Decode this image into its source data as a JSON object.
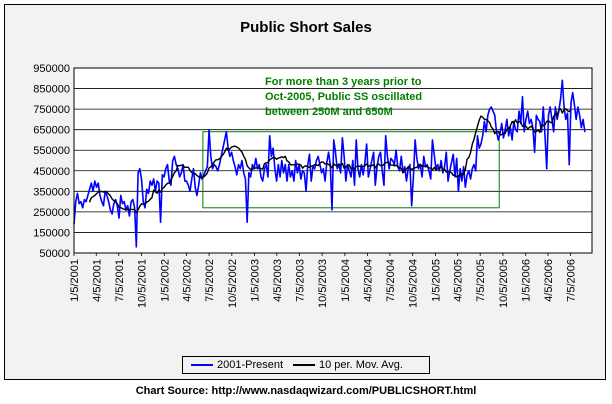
{
  "chart_data": {
    "type": "line",
    "title": "Public Short Sales",
    "xlabel": "",
    "ylabel": "",
    "ylim": [
      50000,
      950000
    ],
    "yticks": [
      950000,
      850000,
      750000,
      650000,
      550000,
      450000,
      350000,
      250000,
      150000,
      50000
    ],
    "ytick_labels": [
      "950000",
      "850000",
      "750000",
      "650000",
      "550000",
      "450000",
      "350000",
      "250000",
      "150000",
      "50000"
    ],
    "xticks": [
      "1/5/2001",
      "4/5/2001",
      "7/5/2001",
      "10/5/2001",
      "1/5/2002",
      "4/5/2002",
      "7/5/2002",
      "10/5/2002",
      "1/5/2003",
      "4/5/2003",
      "7/5/2003",
      "10/5/2003",
      "1/5/2004",
      "4/5/2004",
      "7/5/2004",
      "10/5/2004",
      "1/5/2005",
      "4/5/2005",
      "7/5/2005",
      "10/5/2005",
      "1/5/2006",
      "4/5/2006",
      "7/5/2006"
    ],
    "x_start": "2001-01-05",
    "x_end": "2006-09-30",
    "step_days": 7,
    "grid": true,
    "legend_position": "bottom",
    "annotation": {
      "lines": [
        "For more than 3 years prior to",
        "Oct-2005, Public SS oscillated",
        "between 250M and 650M"
      ],
      "box_from": "2002-06-10",
      "box_to": "2005-09-20",
      "box_ylim": [
        270000,
        640000
      ],
      "color": "#008000"
    },
    "series": [
      {
        "name": "2001-Present",
        "color": "#0000ff",
        "values": [
          190000,
          300000,
          340000,
          290000,
          300000,
          270000,
          310000,
          300000,
          330000,
          360000,
          390000,
          350000,
          400000,
          370000,
          390000,
          330000,
          300000,
          280000,
          350000,
          330000,
          300000,
          260000,
          240000,
          290000,
          310000,
          280000,
          220000,
          330000,
          290000,
          300000,
          260000,
          280000,
          230000,
          300000,
          310000,
          270000,
          80000,
          440000,
          460000,
          410000,
          300000,
          270000,
          360000,
          340000,
          400000,
          380000,
          410000,
          350000,
          400000,
          390000,
          200000,
          430000,
          420000,
          460000,
          480000,
          400000,
          380000,
          500000,
          520000,
          480000,
          460000,
          420000,
          440000,
          480000,
          400000,
          400000,
          380000,
          350000,
          410000,
          460000,
          370000,
          330000,
          380000,
          440000,
          410000,
          430000,
          450000,
          470000,
          650000,
          520000,
          460000,
          480000,
          470000,
          450000,
          480000,
          520000,
          560000,
          600000,
          640000,
          560000,
          520000,
          540000,
          500000,
          470000,
          430000,
          480000,
          460000,
          500000,
          440000,
          410000,
          200000,
          440000,
          420000,
          480000,
          460000,
          510000,
          460000,
          480000,
          420000,
          400000,
          460000,
          480000,
          420000,
          620000,
          520000,
          560000,
          460000,
          400000,
          480000,
          420000,
          500000,
          440000,
          480000,
          400000,
          480000,
          420000,
          450000,
          400000,
          500000,
          440000,
          480000,
          410000,
          450000,
          440000,
          350000,
          480000,
          530000,
          400000,
          470000,
          460000,
          500000,
          520000,
          480000,
          440000,
          460000,
          400000,
          490000,
          540000,
          480000,
          260000,
          600000,
          540000,
          460000,
          480000,
          440000,
          610000,
          520000,
          400000,
          480000,
          450000,
          420000,
          500000,
          380000,
          600000,
          460000,
          420000,
          480000,
          430000,
          490000,
          580000,
          420000,
          460000,
          500000,
          540000,
          380000,
          470000,
          520000,
          540000,
          450000,
          380000,
          620000,
          520000,
          460000,
          510000,
          500000,
          480000,
          550000,
          470000,
          450000,
          520000,
          440000,
          470000,
          400000,
          460000,
          480000,
          280000,
          420000,
          600000,
          510000,
          460000,
          480000,
          420000,
          520000,
          470000,
          480000,
          450000,
          410000,
          600000,
          530000,
          460000,
          480000,
          450000,
          500000,
          440000,
          470000,
          540000,
          400000,
          450000,
          490000,
          530000,
          420000,
          510000,
          350000,
          460000,
          400000,
          470000,
          370000,
          430000,
          450000,
          410000,
          460000,
          480000,
          450000,
          620000,
          560000,
          580000,
          620000,
          690000,
          640000,
          720000,
          750000,
          760000,
          740000,
          720000,
          640000,
          600000,
          630000,
          680000,
          610000,
          650000,
          700000,
          620000,
          660000,
          600000,
          690000,
          650000,
          640000,
          740000,
          680000,
          810000,
          640000,
          700000,
          740000,
          680000,
          700000,
          660000,
          540000,
          720000,
          700000,
          690000,
          640000,
          760000,
          620000,
          460000,
          720000,
          760000,
          700000,
          640000,
          760000,
          700000,
          740000,
          800000,
          890000,
          760000,
          700000,
          730000,
          480000,
          780000,
          830000,
          770000,
          700000,
          760000,
          720000,
          660000,
          700000,
          640000
        ]
      },
      {
        "name": "10 per. Mov. Avg.",
        "color": "#000000",
        "values": [
          null,
          null,
          null,
          null,
          null,
          null,
          null,
          null,
          null,
          299000,
          319000,
          324000,
          330000,
          338000,
          347000,
          350000,
          349000,
          347000,
          349000,
          346000,
          337000,
          328000,
          313000,
          305000,
          299000,
          290000,
          273000,
          271000,
          266000,
          263000,
          259000,
          262000,
          261000,
          262000,
          262000,
          261000,
          247000,
          261000,
          278000,
          289000,
          288000,
          285000,
          298000,
          302000,
          311000,
          319000,
          356000,
          347000,
          341000,
          356000,
          346000,
          363000,
          369000,
          381000,
          389000,
          390000,
          407000,
          422000,
          441000,
          450000,
          476000,
          475000,
          477000,
          475000,
          467000,
          467000,
          467000,
          452000,
          441000,
          439000,
          436000,
          427000,
          421000,
          417000,
          418000,
          421000,
          428000,
          440000,
          464000,
          470000,
          479000,
          494000,
          503000,
          504000,
          508000,
          517000,
          528000,
          541000,
          560000,
          551000,
          557000,
          565000,
          568000,
          570000,
          565000,
          561000,
          551000,
          541000,
          521000,
          506000,
          474000,
          464000,
          456000,
          458000,
          461000,
          464000,
          464000,
          462000,
          460000,
          459000,
          485000,
          489000,
          489000,
          503000,
          509000,
          514000,
          514000,
          506000,
          512000,
          514000,
          518000,
          514000,
          520000,
          498000,
          494000,
          480000,
          479000,
          479000,
          481000,
          483000,
          481000,
          478000,
          463000,
          471000,
          474000,
          470000,
          467000,
          472000,
          474000,
          480000,
          478000,
          475000,
          487000,
          493000,
          492000,
          483000,
          485000,
          481000,
          475000,
          465000,
          484000,
          476000,
          474000,
          483000,
          479000,
          485000,
          463000,
          468000,
          478000,
          478000,
          459000,
          465000,
          458000,
          471000,
          472000,
          472000,
          469000,
          471000,
          475000,
          483000,
          472000,
          476000,
          474000,
          480000,
          464000,
          479000,
          483000,
          475000,
          475000,
          481000,
          489000,
          492000,
          484000,
          478000,
          478000,
          474000,
          477000,
          470000,
          465000,
          461000,
          440000,
          450000,
          459000,
          469000,
          463000,
          456000,
          461000,
          465000,
          467000,
          477000,
          482000,
          471000,
          474000,
          469000,
          471000,
          464000,
          463000,
          454000,
          466000,
          454000,
          459000,
          463000,
          470000,
          452000,
          458000,
          445000,
          445000,
          445000,
          440000,
          428000,
          429000,
          421000,
          424000,
          428000,
          436000,
          433000,
          457000,
          506000,
          514000,
          538000,
          579000,
          603000,
          637000,
          667000,
          696000,
          716000,
          710000,
          701000,
          699000,
          693000,
          684000,
          663000,
          653000,
          631000,
          640000,
          641000,
          625000,
          626000,
          634000,
          632000,
          652000,
          656000,
          668000,
          690000,
          681000,
          698000,
          683000,
          689000,
          687000,
          667000,
          667000,
          666000,
          654000,
          661000,
          667000,
          655000,
          638000,
          642000,
          648000,
          637000,
          672000,
          670000,
          674000,
          690000,
          693000,
          686000,
          684000,
          714000,
          726000,
          720000,
          747000,
          751000,
          731000,
          746000,
          752000,
          742000,
          738000,
          747000
        ]
      }
    ]
  },
  "source_text": "Chart Source: http://www.nasdaqwizard.com/PUBLICSHORT.html"
}
